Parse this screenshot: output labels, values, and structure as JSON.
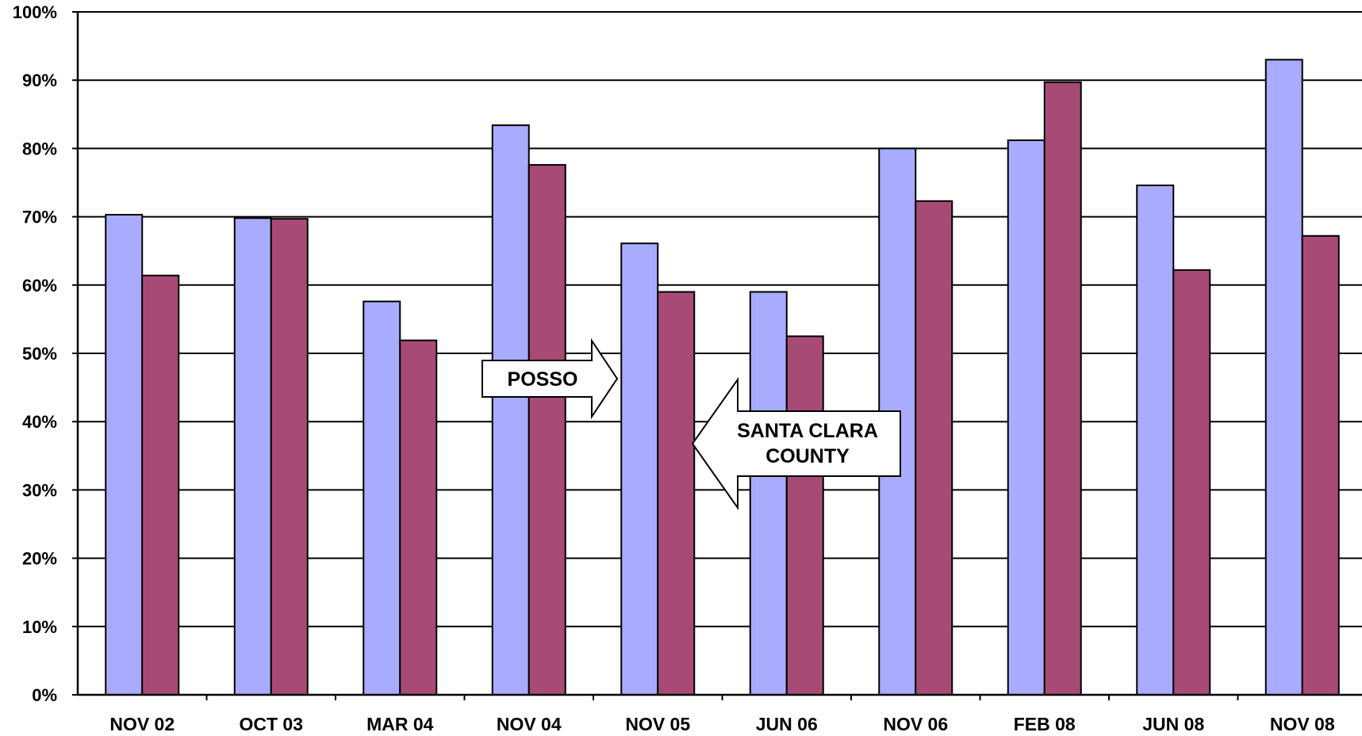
{
  "chart_data": {
    "type": "bar",
    "categories": [
      "NOV 02",
      "OCT 03",
      "MAR 04",
      "NOV 04",
      "NOV 05",
      "JUN 06",
      "NOV 06",
      "FEB 08",
      "JUN 08",
      "NOV 08"
    ],
    "series": [
      {
        "values": [
          70.3,
          69.8,
          57.6,
          83.4,
          66.1,
          59.0,
          80.0,
          81.2,
          74.6,
          93.0
        ],
        "color": "#a9abff"
      },
      {
        "values": [
          61.4,
          69.7,
          51.9,
          77.6,
          59.0,
          52.5,
          72.3,
          89.7,
          62.2,
          67.2
        ],
        "color": "#a84a76"
      }
    ],
    "title": "",
    "xlabel": "",
    "ylabel": "",
    "ylim": [
      0,
      100
    ],
    "y_ticks": [
      "0%",
      "10%",
      "20%",
      "30%",
      "40%",
      "50%",
      "60%",
      "70%",
      "80%",
      "90%",
      "100%"
    ],
    "grid": true,
    "annotations": {
      "posso": "POSSO",
      "county_line1": "SANTA CLARA",
      "county_line2": "COUNTY"
    }
  }
}
